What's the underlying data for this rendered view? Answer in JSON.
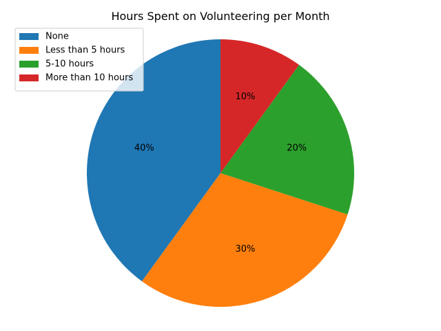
{
  "chart_data": {
    "type": "pie",
    "title": "Hours Spent on Volunteering per Month",
    "categories": [
      "None",
      "Less than 5 hours",
      "5-10 hours",
      "More than 10 hours"
    ],
    "values": [
      40,
      30,
      20,
      10
    ],
    "value_labels": [
      "40%",
      "30%",
      "20%",
      "10%"
    ],
    "colors": [
      "#1f77b4",
      "#ff7f0e",
      "#2ca02c",
      "#d62728"
    ],
    "start_angle_deg": 90,
    "direction": "counterclockwise",
    "legend_position": "top-left"
  }
}
